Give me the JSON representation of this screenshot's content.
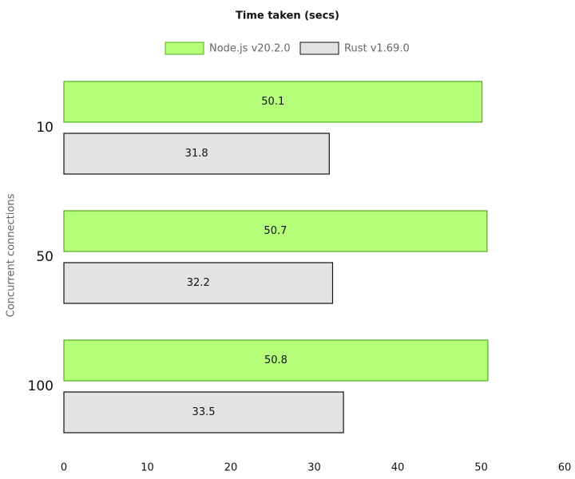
{
  "chart_data": {
    "type": "hbar",
    "title": "Time taken (secs)",
    "y_label": "Concurrent connections",
    "categories": [
      "10",
      "50",
      "100"
    ],
    "series": [
      {
        "name": "Node.js v20.2.0",
        "color": "#b6ff7a",
        "edge": "#4caf1a",
        "values": [
          50.1,
          50.7,
          50.8
        ]
      },
      {
        "name": "Rust v1.69.0",
        "color": "#e3e3e3",
        "edge": "#111111",
        "values": [
          31.8,
          32.2,
          33.5
        ]
      }
    ],
    "xlim": [
      0,
      60
    ],
    "xticks": [
      0,
      10,
      20,
      30,
      40,
      50,
      60
    ],
    "grid": false,
    "legend": "top"
  }
}
